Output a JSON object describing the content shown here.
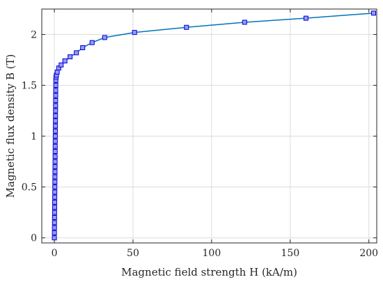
{
  "chart_data": {
    "type": "line",
    "title": "",
    "xlabel": "Magnetic field strength H (kA/m)",
    "ylabel": "Magnetic flux density B (T)",
    "xlim": [
      -8,
      205
    ],
    "ylim": [
      -0.05,
      2.25
    ],
    "xticks": [
      0,
      50,
      100,
      150,
      200
    ],
    "yticks": [
      0,
      0.5,
      1,
      1.5,
      2
    ],
    "xtick_labels": [
      "0",
      "50",
      "100",
      "150",
      "200"
    ],
    "ytick_labels": [
      "0",
      "0.5",
      "1",
      "1.5",
      "2"
    ],
    "grid": true,
    "legend": "none",
    "line_color": "#0072bd",
    "marker": "square",
    "marker_fill": "#9999ff",
    "marker_edge": "#0000cc",
    "series": [
      {
        "x": [
          0,
          0.03,
          0.06,
          0.09,
          0.12,
          0.15,
          0.18,
          0.21,
          0.24,
          0.27,
          0.3,
          0.33,
          0.36,
          0.39,
          0.42,
          0.45,
          0.48,
          0.51,
          0.54,
          0.57,
          0.6,
          0.63,
          0.66,
          0.69,
          0.72,
          0.75,
          0.78,
          0.81,
          0.84,
          0.87,
          0.9,
          0.95,
          1.05,
          1.3,
          1.8,
          2.8,
          4.3,
          6.7,
          10,
          14,
          18,
          24,
          32,
          51,
          84,
          121,
          160,
          203
        ],
        "y": [
          0,
          0.05,
          0.1,
          0.15,
          0.2,
          0.25,
          0.3,
          0.35,
          0.4,
          0.45,
          0.5,
          0.55,
          0.6,
          0.65,
          0.7,
          0.75,
          0.8,
          0.85,
          0.9,
          0.95,
          1.0,
          1.05,
          1.1,
          1.15,
          1.2,
          1.25,
          1.3,
          1.35,
          1.4,
          1.45,
          1.5,
          1.55,
          1.58,
          1.6,
          1.63,
          1.67,
          1.7,
          1.74,
          1.78,
          1.82,
          1.87,
          1.92,
          1.97,
          2.02,
          2.07,
          2.12,
          2.16,
          2.21
        ]
      }
    ]
  }
}
